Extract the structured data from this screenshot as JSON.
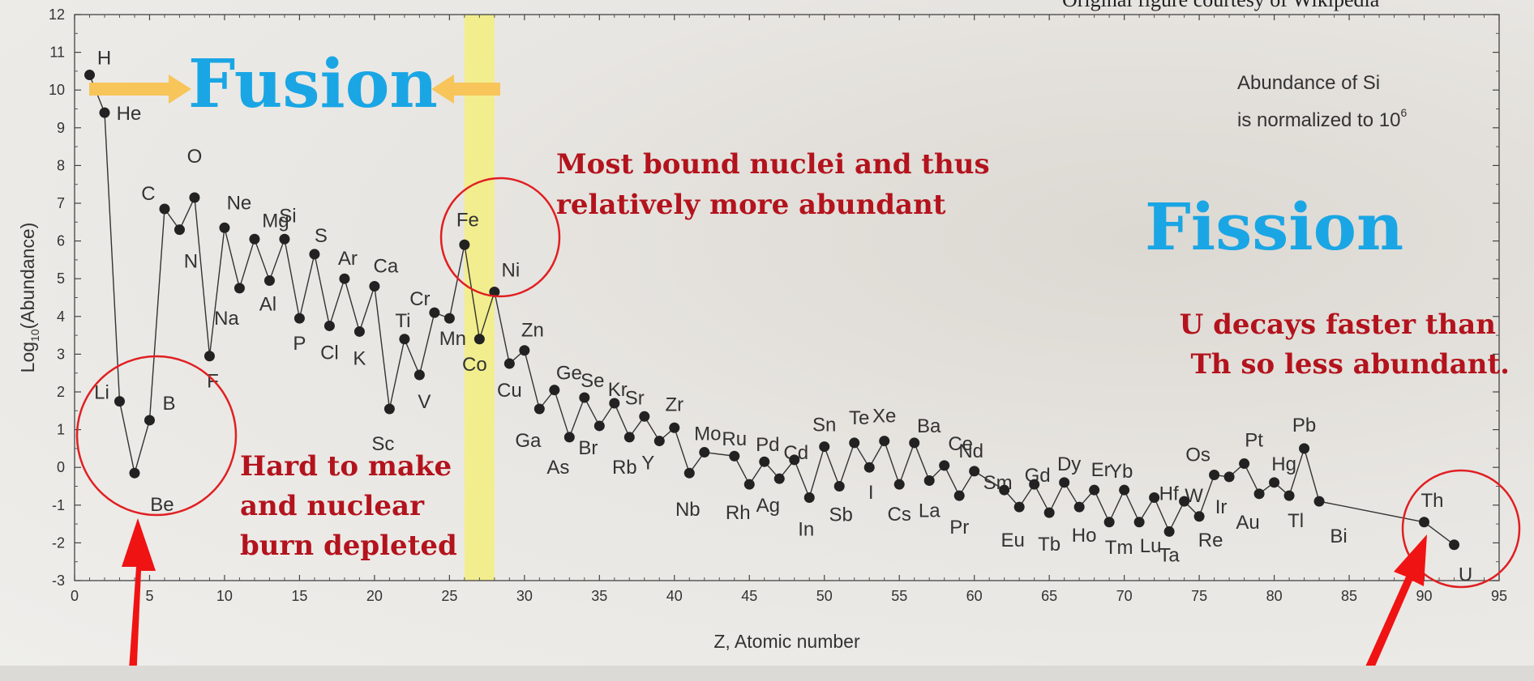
{
  "credit": "Original figure courtesy of Wikipedia",
  "chart_data": {
    "type": "line",
    "xlabel": "Z, Atomic number",
    "ylabel_main": "Log",
    "ylabel_sub": "10",
    "ylabel_rest": "(Abundance)",
    "xlim": [
      0,
      95
    ],
    "ylim": [
      -3,
      12
    ],
    "xticks": [
      0,
      5,
      10,
      15,
      20,
      25,
      30,
      35,
      40,
      45,
      50,
      55,
      60,
      65,
      70,
      75,
      80,
      85,
      90,
      95
    ],
    "yticks": [
      -3,
      -2,
      -1,
      0,
      1,
      2,
      3,
      4,
      5,
      6,
      7,
      8,
      9,
      10,
      11,
      12
    ],
    "points": [
      {
        "z": 1,
        "v": 10.4,
        "label": "H"
      },
      {
        "z": 2,
        "v": 9.4,
        "label": "He"
      },
      {
        "z": 3,
        "v": 1.75,
        "label": "Li"
      },
      {
        "z": 4,
        "v": -0.15,
        "label": "Be"
      },
      {
        "z": 5,
        "v": 1.25,
        "label": "B"
      },
      {
        "z": 6,
        "v": 6.85,
        "label": "C"
      },
      {
        "z": 7,
        "v": 6.3,
        "label": "N"
      },
      {
        "z": 8,
        "v": 7.15,
        "label": "O"
      },
      {
        "z": 9,
        "v": 2.95,
        "label": "F"
      },
      {
        "z": 10,
        "v": 6.35,
        "label": "Ne"
      },
      {
        "z": 11,
        "v": 4.75,
        "label": "Na"
      },
      {
        "z": 12,
        "v": 6.05,
        "label": "Mg"
      },
      {
        "z": 13,
        "v": 4.95,
        "label": "Al"
      },
      {
        "z": 14,
        "v": 6.05,
        "label": "Si"
      },
      {
        "z": 15,
        "v": 3.95,
        "label": "P"
      },
      {
        "z": 16,
        "v": 5.65,
        "label": "S"
      },
      {
        "z": 17,
        "v": 3.75,
        "label": "Cl"
      },
      {
        "z": 18,
        "v": 5.0,
        "label": "Ar"
      },
      {
        "z": 19,
        "v": 3.6,
        "label": "K"
      },
      {
        "z": 20,
        "v": 4.8,
        "label": "Ca"
      },
      {
        "z": 21,
        "v": 1.55,
        "label": "Sc"
      },
      {
        "z": 22,
        "v": 3.4,
        "label": "Ti"
      },
      {
        "z": 23,
        "v": 2.45,
        "label": "V"
      },
      {
        "z": 24,
        "v": 4.1,
        "label": "Cr"
      },
      {
        "z": 25,
        "v": 3.95,
        "label": "Mn"
      },
      {
        "z": 26,
        "v": 5.9,
        "label": "Fe"
      },
      {
        "z": 27,
        "v": 3.4,
        "label": "Co"
      },
      {
        "z": 28,
        "v": 4.65,
        "label": "Ni"
      },
      {
        "z": 29,
        "v": 2.75,
        "label": "Cu"
      },
      {
        "z": 30,
        "v": 3.1,
        "label": "Zn"
      },
      {
        "z": 31,
        "v": 1.55,
        "label": "Ga"
      },
      {
        "z": 32,
        "v": 2.05,
        "label": "Ge"
      },
      {
        "z": 33,
        "v": 0.8,
        "label": "As"
      },
      {
        "z": 34,
        "v": 1.85,
        "label": "Se"
      },
      {
        "z": 35,
        "v": 1.1,
        "label": "Br"
      },
      {
        "z": 36,
        "v": 1.7,
        "label": "Kr"
      },
      {
        "z": 37,
        "v": 0.8,
        "label": "Rb"
      },
      {
        "z": 38,
        "v": 1.35,
        "label": "Sr"
      },
      {
        "z": 39,
        "v": 0.7,
        "label": "Y"
      },
      {
        "z": 40,
        "v": 1.05,
        "label": "Zr"
      },
      {
        "z": 41,
        "v": -0.15,
        "label": "Nb"
      },
      {
        "z": 42,
        "v": 0.4,
        "label": "Mo"
      },
      {
        "z": 44,
        "v": 0.3,
        "label": "Ru"
      },
      {
        "z": 45,
        "v": -0.45,
        "label": "Rh"
      },
      {
        "z": 46,
        "v": 0.15,
        "label": "Pd"
      },
      {
        "z": 47,
        "v": -0.3,
        "label": "Ag"
      },
      {
        "z": 48,
        "v": 0.2,
        "label": "Cd"
      },
      {
        "z": 49,
        "v": -0.8,
        "label": "In"
      },
      {
        "z": 50,
        "v": 0.55,
        "label": "Sn"
      },
      {
        "z": 51,
        "v": -0.5,
        "label": "Sb"
      },
      {
        "z": 52,
        "v": 0.65,
        "label": "Te"
      },
      {
        "z": 53,
        "v": 0.0,
        "label": "I"
      },
      {
        "z": 54,
        "v": 0.7,
        "label": "Xe"
      },
      {
        "z": 55,
        "v": -0.45,
        "label": "Cs"
      },
      {
        "z": 56,
        "v": 0.65,
        "label": "Ba"
      },
      {
        "z": 57,
        "v": -0.35,
        "label": "La"
      },
      {
        "z": 58,
        "v": 0.05,
        "label": "Ce"
      },
      {
        "z": 59,
        "v": -0.75,
        "label": "Pr"
      },
      {
        "z": 60,
        "v": -0.1,
        "label": "Nd"
      },
      {
        "z": 62,
        "v": -0.6,
        "label": "Sm"
      },
      {
        "z": 63,
        "v": -1.05,
        "label": "Eu"
      },
      {
        "z": 64,
        "v": -0.45,
        "label": "Gd"
      },
      {
        "z": 65,
        "v": -1.2,
        "label": "Tb"
      },
      {
        "z": 66,
        "v": -0.4,
        "label": "Dy"
      },
      {
        "z": 67,
        "v": -1.05,
        "label": "Ho"
      },
      {
        "z": 68,
        "v": -0.6,
        "label": "Er"
      },
      {
        "z": 69,
        "v": -1.45,
        "label": "Tm"
      },
      {
        "z": 70,
        "v": -0.6,
        "label": "Yb"
      },
      {
        "z": 71,
        "v": -1.45,
        "label": "Lu"
      },
      {
        "z": 72,
        "v": -0.8,
        "label": "Hf"
      },
      {
        "z": 73,
        "v": -1.7,
        "label": "Ta"
      },
      {
        "z": 74,
        "v": -0.9,
        "label": "W"
      },
      {
        "z": 75,
        "v": -1.3,
        "label": "Re"
      },
      {
        "z": 76,
        "v": -0.2,
        "label": "Os"
      },
      {
        "z": 77,
        "v": -0.25,
        "label": "Ir"
      },
      {
        "z": 78,
        "v": 0.1,
        "label": "Pt"
      },
      {
        "z": 79,
        "v": -0.7,
        "label": "Au"
      },
      {
        "z": 80,
        "v": -0.4,
        "label": "Hg"
      },
      {
        "z": 81,
        "v": -0.75,
        "label": "Tl"
      },
      {
        "z": 82,
        "v": 0.5,
        "label": "Pb"
      },
      {
        "z": 83,
        "v": -0.9,
        "label": "Bi"
      },
      {
        "z": 90,
        "v": -1.45,
        "label": "Th"
      },
      {
        "z": 92,
        "v": -2.05,
        "label": "U"
      }
    ],
    "annotations": {
      "fusion": "Fusion",
      "fission": "Fission",
      "note_si_line1": "Abundance of Si",
      "note_si_line2": "is normalized to 10",
      "note_si_exp": "6",
      "bound_line1": "Most bound nuclei and thus",
      "bound_line2": "relatively more abundant",
      "light_line1": "Hard to make",
      "light_line2": "and nuclear",
      "light_line3": "burn depleted",
      "u_line1": "U decays faster than",
      "u_line2": "Th so less abundant."
    },
    "iron_band_z": [
      26,
      28
    ]
  },
  "colors": {
    "fusion_blue": "#1aa6e4",
    "annotation_red": "#b3131d",
    "circle_red": "#e01f22",
    "arrow_red": "#f01313",
    "arrow_orange": "#f7c55a",
    "band_yellow": "#f3ee7f",
    "line_gray": "#333333"
  }
}
